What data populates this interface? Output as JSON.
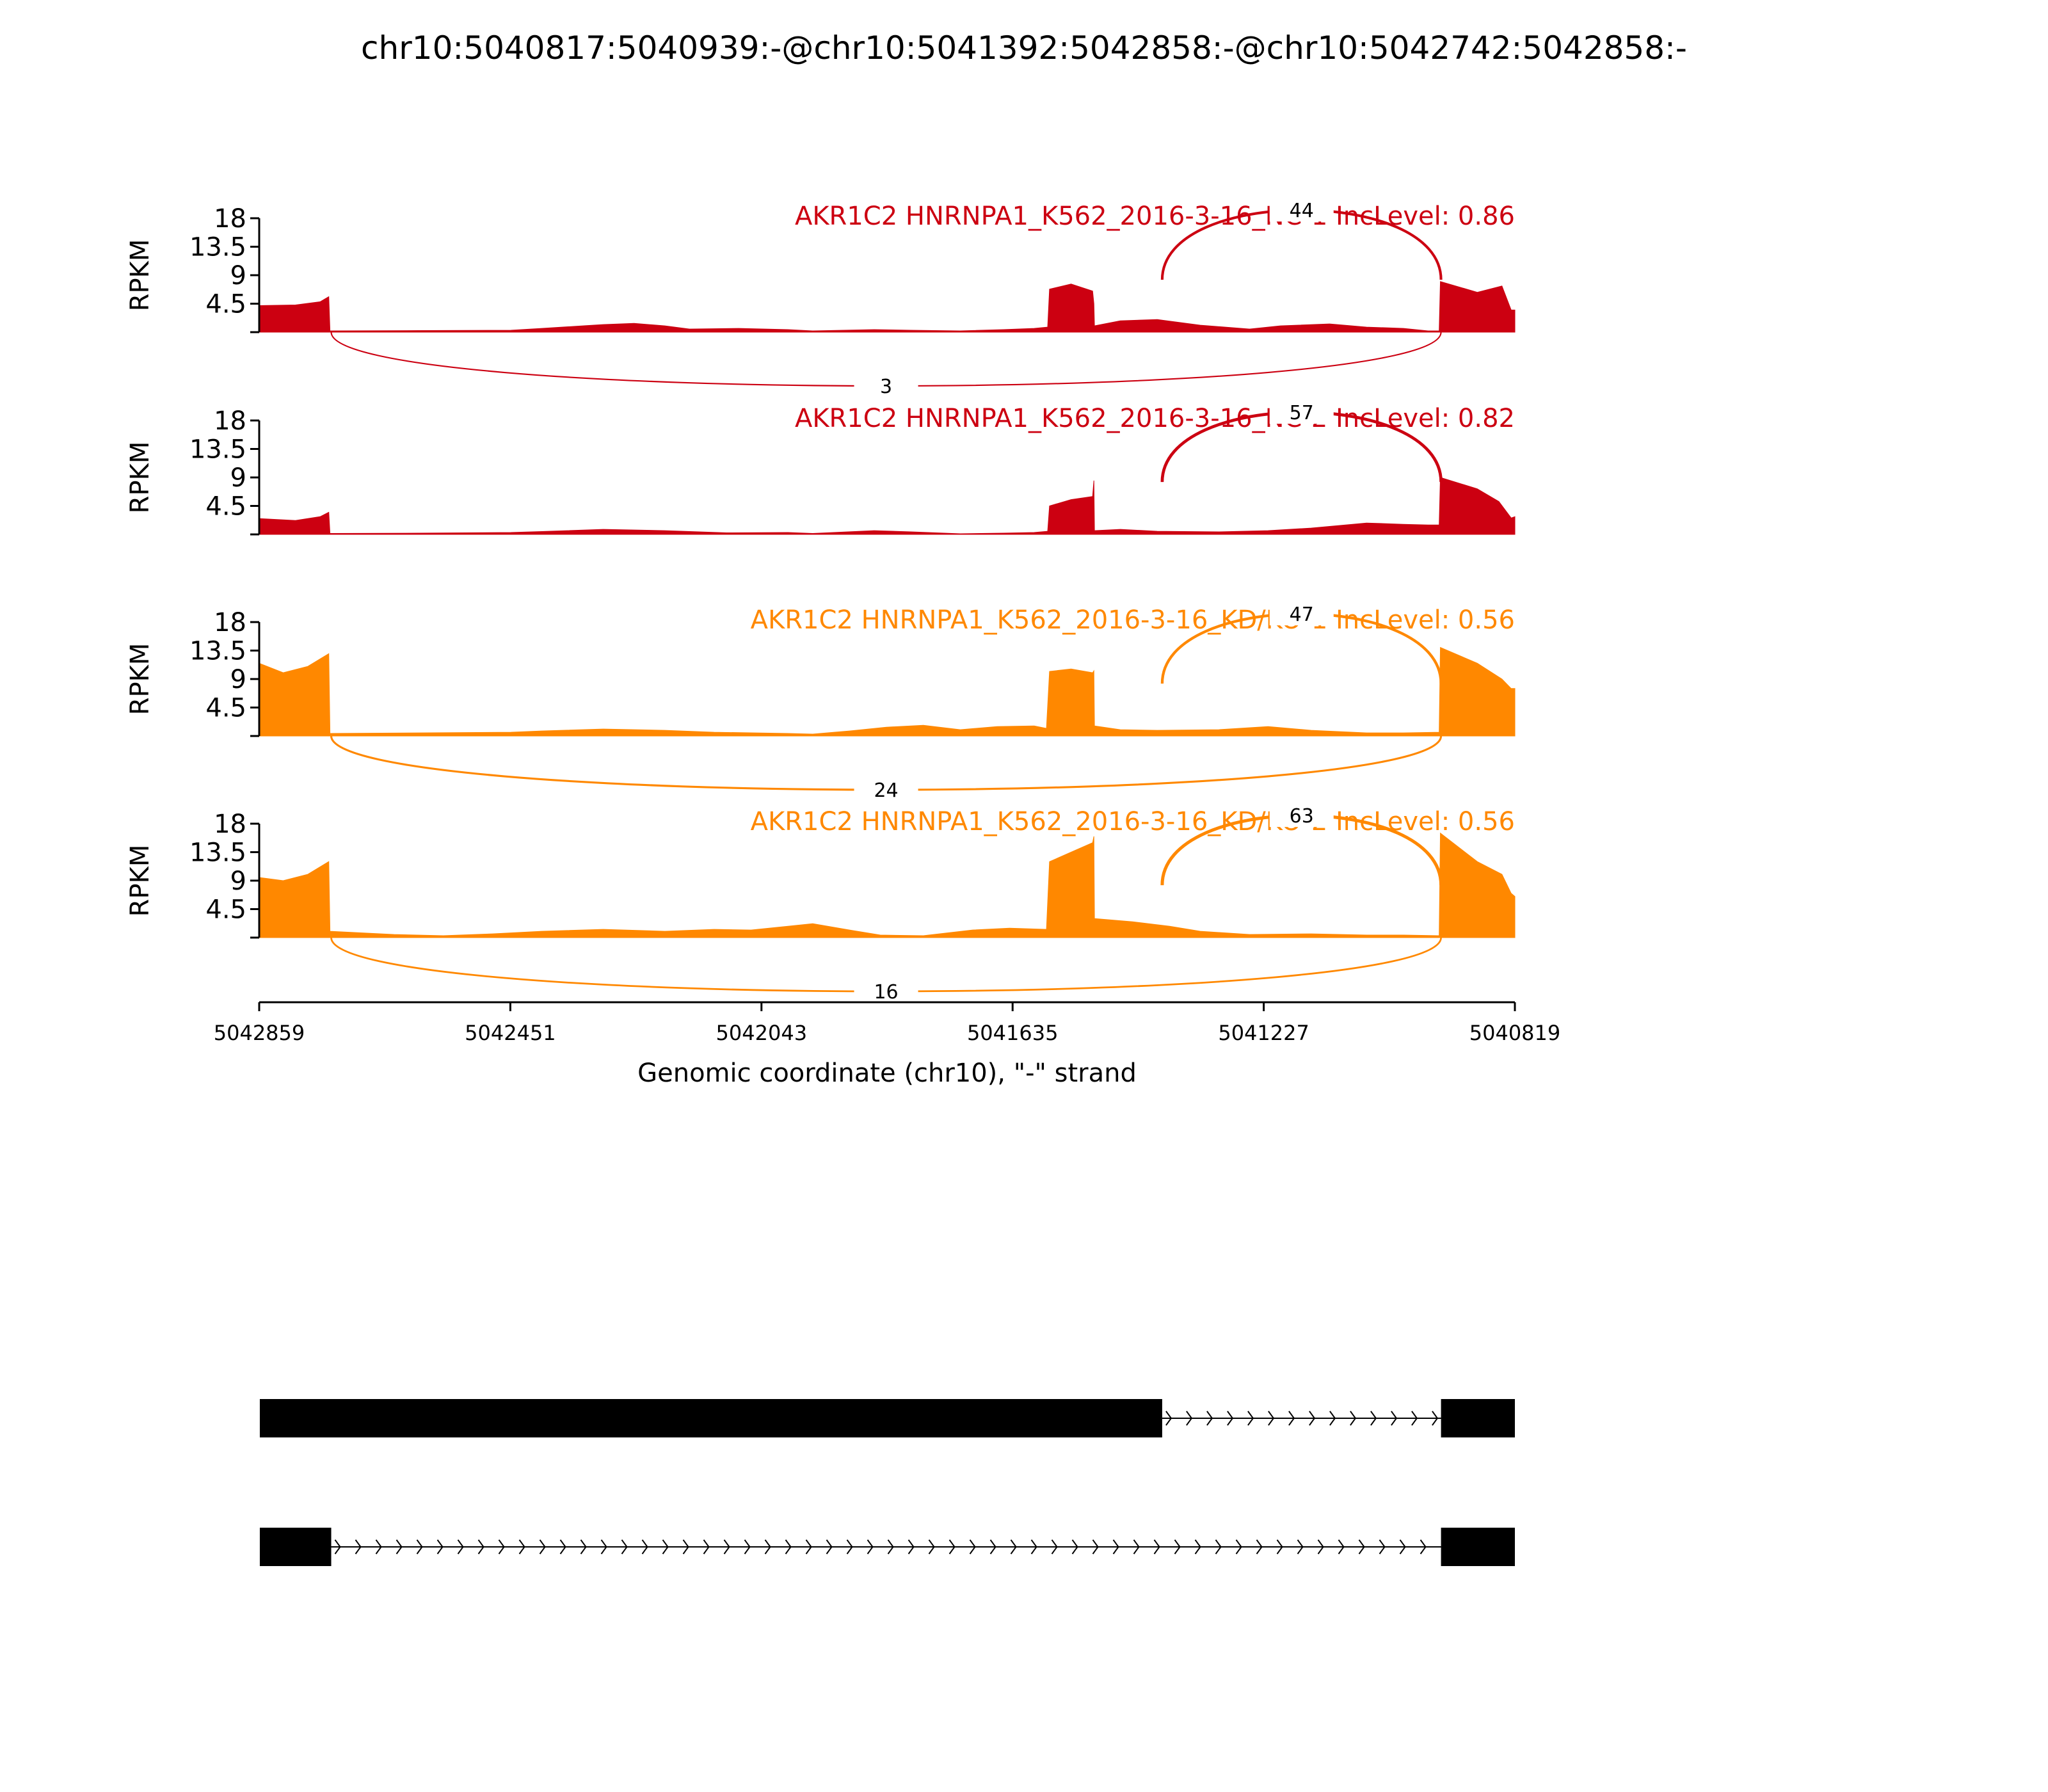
{
  "title": "chr10:5040817:5040939:-@chr10:5041392:5042858:-@chr10:5042742:5042858:-",
  "chart_data": {
    "type": "area",
    "chart_kind": "sashimi plot",
    "xlabel": "Genomic coordinate (chr10), \"-\" strand",
    "x_range": [
      5042859,
      5040819
    ],
    "x_ticks": [
      5042859,
      5042451,
      5042043,
      5041635,
      5041227,
      5040819
    ],
    "x_reversed": true,
    "ylabel": "RPKM",
    "ylim": [
      0,
      18
    ],
    "y_ticks": [
      4.5,
      9,
      13.5,
      18
    ],
    "y_tick_labels": [
      "4.5",
      "9",
      "13.5",
      "18"
    ],
    "x_tick_labels": [
      "5042859",
      "5042451",
      "5042043",
      "5041635",
      "5041227",
      "5040819"
    ],
    "tracks": [
      {
        "label": "AKR1C2 HNRNPA1_K562_2016-3-16_NC-1 IncLevel: 0.86",
        "color": "#cc0011",
        "coverage": [
          [
            5042859,
            4.2
          ],
          [
            5042800,
            4.3
          ],
          [
            5042760,
            4.8
          ],
          [
            5042746,
            5.6
          ],
          [
            5042744,
            0.2
          ],
          [
            5042600,
            0.25
          ],
          [
            5042450,
            0.3
          ],
          [
            5042400,
            0.6
          ],
          [
            5042300,
            1.2
          ],
          [
            5042250,
            1.4
          ],
          [
            5042200,
            1.0
          ],
          [
            5042160,
            0.5
          ],
          [
            5042080,
            0.6
          ],
          [
            5042000,
            0.4
          ],
          [
            5041960,
            0.2
          ],
          [
            5041860,
            0.4
          ],
          [
            5041800,
            0.3
          ],
          [
            5041720,
            0.2
          ],
          [
            5041650,
            0.4
          ],
          [
            5041600,
            0.6
          ],
          [
            5041578,
            0.8
          ],
          [
            5041575,
            6.8
          ],
          [
            5041540,
            7.6
          ],
          [
            5041505,
            6.5
          ],
          [
            5041503,
            4.5
          ],
          [
            5041502,
            1.0
          ],
          [
            5041460,
            1.8
          ],
          [
            5041400,
            2.0
          ],
          [
            5041330,
            1.1
          ],
          [
            5041250,
            0.5
          ],
          [
            5041200,
            1.0
          ],
          [
            5041120,
            1.3
          ],
          [
            5041060,
            0.8
          ],
          [
            5041000,
            0.6
          ],
          [
            5040960,
            0.2
          ],
          [
            5040942,
            0.2
          ],
          [
            5040940,
            8.0
          ],
          [
            5040880,
            6.3
          ],
          [
            5040840,
            7.3
          ],
          [
            5040825,
            3.5
          ],
          [
            5040819,
            3.5
          ]
        ],
        "junctions": [
          {
            "from": 5041392,
            "to": 5040939,
            "reads": 44,
            "side": "above"
          },
          {
            "from": 5042742,
            "to": 5040939,
            "reads": 3,
            "side": "below"
          }
        ]
      },
      {
        "label": "AKR1C2 HNRNPA1_K562_2016-3-16_NC-2 IncLevel: 0.82",
        "color": "#cc0011",
        "coverage": [
          [
            5042859,
            2.5
          ],
          [
            5042800,
            2.2
          ],
          [
            5042760,
            2.8
          ],
          [
            5042746,
            3.5
          ],
          [
            5042744,
            0.15
          ],
          [
            5042600,
            0.2
          ],
          [
            5042450,
            0.3
          ],
          [
            5042400,
            0.45
          ],
          [
            5042300,
            0.8
          ],
          [
            5042200,
            0.6
          ],
          [
            5042100,
            0.25
          ],
          [
            5042000,
            0.3
          ],
          [
            5041960,
            0.15
          ],
          [
            5041860,
            0.6
          ],
          [
            5041800,
            0.4
          ],
          [
            5041720,
            0.1
          ],
          [
            5041650,
            0.2
          ],
          [
            5041600,
            0.3
          ],
          [
            5041578,
            0.5
          ],
          [
            5041575,
            4.5
          ],
          [
            5041540,
            5.5
          ],
          [
            5041505,
            6.0
          ],
          [
            5041503,
            8.5
          ],
          [
            5041502,
            0.6
          ],
          [
            5041460,
            0.8
          ],
          [
            5041400,
            0.5
          ],
          [
            5041300,
            0.4
          ],
          [
            5041220,
            0.6
          ],
          [
            5041150,
            1.0
          ],
          [
            5041060,
            1.8
          ],
          [
            5041000,
            1.6
          ],
          [
            5040960,
            1.5
          ],
          [
            5040942,
            1.5
          ],
          [
            5040940,
            9.0
          ],
          [
            5040880,
            7.2
          ],
          [
            5040845,
            5.2
          ],
          [
            5040825,
            2.6
          ],
          [
            5040819,
            2.8
          ]
        ],
        "junctions": [
          {
            "from": 5041392,
            "to": 5040939,
            "reads": 57,
            "side": "above"
          }
        ]
      },
      {
        "label": "AKR1C2 HNRNPA1_K562_2016-3-16_KD/KO-1 IncLevel: 0.56",
        "color": "#ff8800",
        "coverage": [
          [
            5042859,
            11.5
          ],
          [
            5042820,
            10.0
          ],
          [
            5042780,
            11.0
          ],
          [
            5042746,
            13.0
          ],
          [
            5042744,
            0.4
          ],
          [
            5042600,
            0.5
          ],
          [
            5042450,
            0.6
          ],
          [
            5042400,
            0.8
          ],
          [
            5042300,
            1.1
          ],
          [
            5042200,
            0.9
          ],
          [
            5042120,
            0.6
          ],
          [
            5042000,
            0.4
          ],
          [
            5041960,
            0.3
          ],
          [
            5041900,
            0.8
          ],
          [
            5041840,
            1.4
          ],
          [
            5041780,
            1.7
          ],
          [
            5041720,
            1.0
          ],
          [
            5041660,
            1.5
          ],
          [
            5041600,
            1.6
          ],
          [
            5041580,
            1.2
          ],
          [
            5041575,
            10.2
          ],
          [
            5041540,
            10.6
          ],
          [
            5041505,
            10.0
          ],
          [
            5041503,
            10.3
          ],
          [
            5041502,
            1.6
          ],
          [
            5041460,
            1.0
          ],
          [
            5041400,
            0.9
          ],
          [
            5041300,
            1.0
          ],
          [
            5041220,
            1.5
          ],
          [
            5041150,
            0.9
          ],
          [
            5041060,
            0.5
          ],
          [
            5041000,
            0.5
          ],
          [
            5040942,
            0.6
          ],
          [
            5040940,
            14.0
          ],
          [
            5040880,
            11.5
          ],
          [
            5040840,
            9.0
          ],
          [
            5040825,
            7.5
          ],
          [
            5040819,
            7.5
          ]
        ],
        "junctions": [
          {
            "from": 5041392,
            "to": 5040939,
            "reads": 47,
            "side": "above"
          },
          {
            "from": 5042742,
            "to": 5040939,
            "reads": 24,
            "side": "below"
          }
        ]
      },
      {
        "label": "AKR1C2 HNRNPA1_K562_2016-3-16_KD/KO-2 IncLevel: 0.56",
        "color": "#ff8800",
        "coverage": [
          [
            5042859,
            9.5
          ],
          [
            5042820,
            9.0
          ],
          [
            5042780,
            10.0
          ],
          [
            5042746,
            12.0
          ],
          [
            5042744,
            1.0
          ],
          [
            5042640,
            0.5
          ],
          [
            5042560,
            0.3
          ],
          [
            5042480,
            0.6
          ],
          [
            5042400,
            1.0
          ],
          [
            5042300,
            1.3
          ],
          [
            5042200,
            1.0
          ],
          [
            5042120,
            1.3
          ],
          [
            5042060,
            1.2
          ],
          [
            5042000,
            1.8
          ],
          [
            5041960,
            2.2
          ],
          [
            5041900,
            1.2
          ],
          [
            5041850,
            0.4
          ],
          [
            5041780,
            0.3
          ],
          [
            5041700,
            1.2
          ],
          [
            5041640,
            1.5
          ],
          [
            5041580,
            1.3
          ],
          [
            5041575,
            12.0
          ],
          [
            5041540,
            13.5
          ],
          [
            5041505,
            15.0
          ],
          [
            5041503,
            16.0
          ],
          [
            5041502,
            3.0
          ],
          [
            5041440,
            2.5
          ],
          [
            5041380,
            1.8
          ],
          [
            5041330,
            1.0
          ],
          [
            5041250,
            0.5
          ],
          [
            5041150,
            0.6
          ],
          [
            5041060,
            0.4
          ],
          [
            5041000,
            0.4
          ],
          [
            5040942,
            0.3
          ],
          [
            5040940,
            16.5
          ],
          [
            5040880,
            12.0
          ],
          [
            5040840,
            10.0
          ],
          [
            5040825,
            7.0
          ],
          [
            5040819,
            6.5
          ]
        ],
        "junctions": [
          {
            "from": 5041392,
            "to": 5040939,
            "reads": 63,
            "side": "above"
          },
          {
            "from": 5042742,
            "to": 5040939,
            "reads": 16,
            "side": "below"
          }
        ]
      }
    ],
    "isoforms": [
      {
        "exons": [
          [
            5042858,
            5041392
          ],
          [
            5040939,
            5040819
          ]
        ]
      },
      {
        "exons": [
          [
            5042858,
            5042742
          ],
          [
            5040939,
            5040819
          ]
        ]
      }
    ]
  }
}
